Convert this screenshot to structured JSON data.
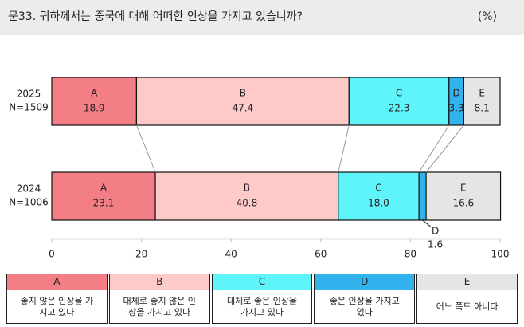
{
  "chart_data": {
    "type": "stacked-bar-horizontal",
    "title": "문33. 귀하께서는 중국에 대해 어떠한 인상을 가지고 있습니까?",
    "unit": "(%)",
    "categories": [
      "2025",
      "2024"
    ],
    "sample_sizes": [
      "N=1509",
      "N=1006"
    ],
    "series": [
      {
        "name": "A",
        "color": "#f47e86",
        "values": [
          18.9,
          23.1
        ],
        "description": "좋지 않은 인상을 가지고 있다"
      },
      {
        "name": "B",
        "color": "#fdc9c9",
        "values": [
          47.4,
          40.8
        ],
        "description": "대체로 좋지 않은 인상을 가지고 있다"
      },
      {
        "name": "C",
        "color": "#5ff3fa",
        "values": [
          22.3,
          18.0
        ],
        "value_labels": [
          "22.3",
          "18.0"
        ],
        "description": "대체로 좋은 인상을 가지고 있다"
      },
      {
        "name": "D",
        "color": "#33b3ee",
        "values": [
          3.3,
          1.6
        ],
        "description": "좋은 인상을 가지고 있다"
      },
      {
        "name": "E",
        "color": "#e5e5e5",
        "values": [
          8.1,
          16.6
        ],
        "description": "어느 쪽도 아니다"
      }
    ],
    "xlim": [
      0,
      100
    ],
    "xticks": [
      0,
      20,
      40,
      60,
      80,
      100
    ]
  }
}
